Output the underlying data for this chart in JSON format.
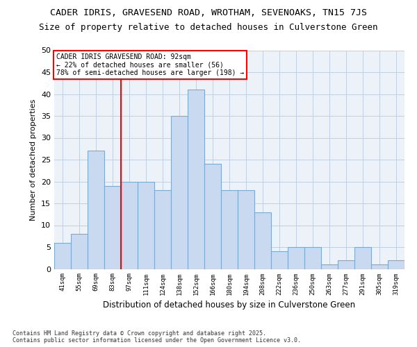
{
  "title1": "CADER IDRIS, GRAVESEND ROAD, WROTHAM, SEVENOAKS, TN15 7JS",
  "title2": "Size of property relative to detached houses in Culverstone Green",
  "xlabel": "Distribution of detached houses by size in Culverstone Green",
  "ylabel": "Number of detached properties",
  "categories": [
    "41sqm",
    "55sqm",
    "69sqm",
    "83sqm",
    "97sqm",
    "111sqm",
    "124sqm",
    "138sqm",
    "152sqm",
    "166sqm",
    "180sqm",
    "194sqm",
    "208sqm",
    "222sqm",
    "236sqm",
    "250sqm",
    "263sqm",
    "277sqm",
    "291sqm",
    "305sqm",
    "319sqm"
  ],
  "values": [
    6,
    8,
    27,
    19,
    20,
    20,
    18,
    35,
    41,
    24,
    18,
    18,
    13,
    4,
    5,
    5,
    1,
    2,
    5,
    1,
    2
  ],
  "bar_color": "#c9d9f0",
  "bar_edge_color": "#7aaad0",
  "grid_color": "#c0cfe0",
  "bg_color": "#edf2f9",
  "vline_x": 3.5,
  "vline_color": "red",
  "annotation_text": "CADER IDRIS GRAVESEND ROAD: 92sqm\n← 22% of detached houses are smaller (56)\n78% of semi-detached houses are larger (198) →",
  "annotation_box_color": "white",
  "annotation_box_edge": "red",
  "ylim": [
    0,
    50
  ],
  "yticks": [
    0,
    5,
    10,
    15,
    20,
    25,
    30,
    35,
    40,
    45,
    50
  ],
  "footer": "Contains HM Land Registry data © Crown copyright and database right 2025.\nContains public sector information licensed under the Open Government Licence v3.0.",
  "title_fontsize": 9.5,
  "subtitle_fontsize": 9.0
}
